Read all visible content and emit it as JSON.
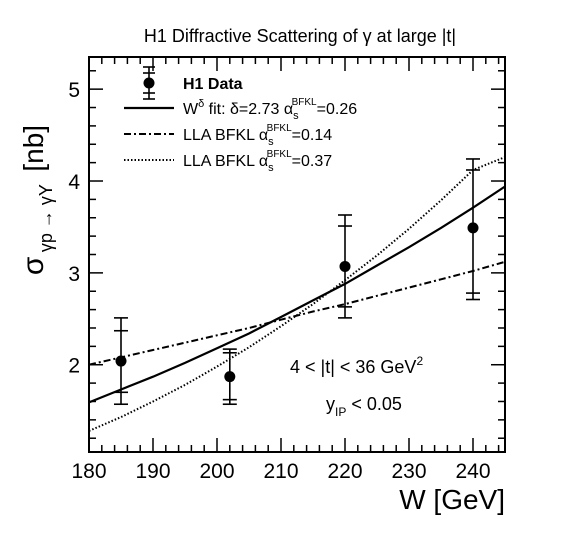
{
  "chart_data": {
    "type": "line",
    "title": "H1 Diffractive Scattering of γ at large |t|",
    "xlabel": "W [GeV]",
    "ylabel": {
      "main": "σ",
      "sub": "γp → γY",
      "unit": "[nb]"
    },
    "xlim": [
      180,
      245
    ],
    "ylim": [
      1.05,
      5.35
    ],
    "xticks": [
      180,
      190,
      200,
      210,
      220,
      230,
      240
    ],
    "yticks": [
      2,
      3,
      4,
      5
    ],
    "grid": false,
    "legend_position": "top-left",
    "data": {
      "name": "H1 Data",
      "points": [
        {
          "x": 185,
          "y": 2.04,
          "stat_low": 1.7,
          "stat_high": 2.37,
          "tot_low": 1.57,
          "tot_high": 2.51
        },
        {
          "x": 202,
          "y": 1.87,
          "stat_low": 1.62,
          "stat_high": 2.13,
          "tot_low": 1.57,
          "tot_high": 2.17
        },
        {
          "x": 220,
          "y": 3.07,
          "stat_low": 2.63,
          "stat_high": 3.51,
          "tot_low": 2.51,
          "tot_high": 3.63
        },
        {
          "x": 240,
          "y": 3.49,
          "stat_low": 2.78,
          "stat_high": 4.12,
          "tot_low": 2.71,
          "tot_high": 4.24
        }
      ]
    },
    "series": [
      {
        "label_parts": [
          "W",
          "δ",
          " fit: δ=2.73 α",
          "s",
          "BFKL",
          "=0.26"
        ],
        "style": "solid",
        "x": [
          180,
          185,
          190,
          195,
          200,
          205,
          210,
          215,
          220,
          225,
          230,
          235,
          240,
          245
        ],
        "y": [
          1.59,
          1.73,
          1.87,
          2.02,
          2.18,
          2.34,
          2.52,
          2.7,
          2.88,
          3.08,
          3.28,
          3.49,
          3.71,
          3.94
        ]
      },
      {
        "label_parts": [
          "LLA BFKL α",
          "s",
          "BFKL",
          "=0.14"
        ],
        "style": "dashdot",
        "x": [
          180,
          185,
          190,
          195,
          200,
          205,
          210,
          215,
          220,
          225,
          230,
          235,
          240,
          245
        ],
        "y": [
          2.0,
          2.08,
          2.16,
          2.24,
          2.32,
          2.4,
          2.49,
          2.58,
          2.66,
          2.75,
          2.84,
          2.93,
          3.02,
          3.12
        ]
      },
      {
        "label_parts": [
          "LLA BFKL α",
          "s",
          "BFKL",
          "=0.37"
        ],
        "style": "dotted",
        "x": [
          180,
          185,
          190,
          195,
          200,
          205,
          210,
          215,
          220,
          225,
          230,
          235,
          240,
          245
        ],
        "y": [
          1.28,
          1.43,
          1.6,
          1.78,
          1.98,
          2.19,
          2.42,
          2.66,
          2.92,
          3.19,
          3.48,
          3.79,
          4.12,
          4.26
        ]
      }
    ],
    "annotations": [
      {
        "parts": [
          "4 < |t| < 36 GeV",
          "2"
        ]
      },
      {
        "parts": [
          "y",
          "IP",
          " < 0.05"
        ]
      }
    ]
  }
}
